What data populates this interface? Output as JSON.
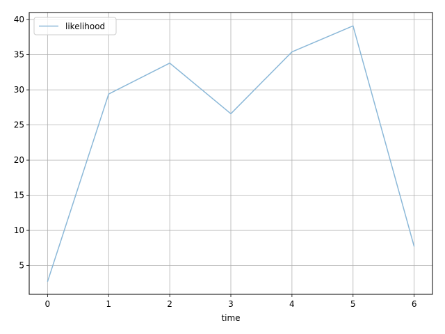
{
  "chart_data": {
    "type": "line",
    "title": "",
    "xlabel": "time",
    "ylabel": "",
    "x": [
      0,
      1,
      2,
      3,
      4,
      5,
      6
    ],
    "series": [
      {
        "name": "likelihood",
        "values": [
          2.7,
          29.4,
          33.8,
          26.6,
          35.4,
          39.1,
          7.7
        ],
        "color": "#8bb8d8"
      }
    ],
    "xlim": [
      -0.3,
      6.3
    ],
    "ylim": [
      0.9,
      41.0
    ],
    "xticks": [
      0,
      1,
      2,
      3,
      4,
      5,
      6
    ],
    "yticks": [
      5,
      10,
      15,
      20,
      25,
      30,
      35,
      40
    ],
    "grid": true,
    "legend": "top-left"
  }
}
